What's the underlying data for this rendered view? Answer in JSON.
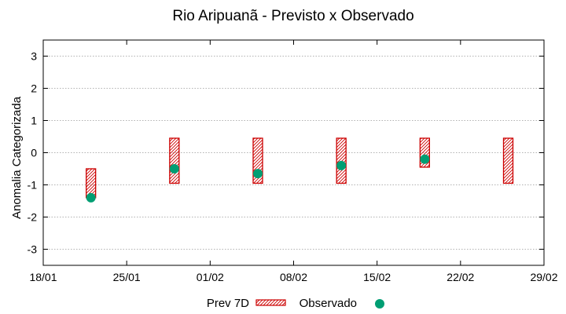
{
  "chart_data": {
    "type": "scatter",
    "title": "Rio Aripuanã - Previsto x Observado",
    "xlabel": "",
    "ylabel": "Anomalia Categorizada",
    "x_tick_labels": [
      "18/01",
      "25/01",
      "01/02",
      "08/02",
      "15/02",
      "22/02",
      "29/02"
    ],
    "y_ticks": [
      -3,
      -2,
      -1,
      0,
      1,
      2,
      3
    ],
    "xlim_days": [
      0,
      42
    ],
    "ylim": [
      -3.5,
      3.5
    ],
    "grid": true,
    "legend_position": "bottom-center",
    "series": [
      {
        "name": "Prev 7D",
        "kind": "range",
        "color": "#cc0000",
        "points": [
          {
            "x": "22/01",
            "low": -1.4,
            "high": -0.5
          },
          {
            "x": "29/01",
            "low": -0.95,
            "high": 0.45
          },
          {
            "x": "05/02",
            "low": -0.95,
            "high": 0.45
          },
          {
            "x": "12/02",
            "low": -0.95,
            "high": 0.45
          },
          {
            "x": "19/02",
            "low": -0.45,
            "high": 0.45
          },
          {
            "x": "26/02",
            "low": -0.95,
            "high": 0.45
          }
        ]
      },
      {
        "name": "Observado",
        "kind": "points",
        "color": "#009e73",
        "points": [
          {
            "x": "22/01",
            "y": -1.4
          },
          {
            "x": "29/01",
            "y": -0.5
          },
          {
            "x": "05/02",
            "y": -0.65
          },
          {
            "x": "12/02",
            "y": -0.4
          },
          {
            "x": "19/02",
            "y": -0.2
          }
        ]
      }
    ]
  }
}
